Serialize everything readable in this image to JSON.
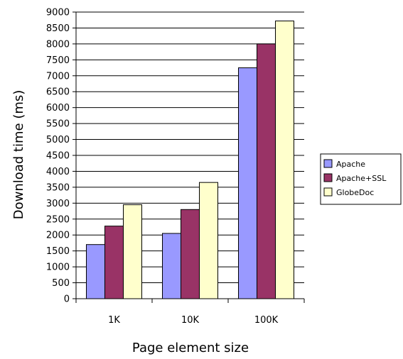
{
  "chart_data": {
    "type": "bar",
    "categories": [
      "1K",
      "10K",
      "100K"
    ],
    "series": [
      {
        "name": "Apache",
        "values": [
          1700,
          2050,
          7250
        ],
        "color": "#9999ff"
      },
      {
        "name": "Apache+SSL",
        "values": [
          2280,
          2800,
          8000
        ],
        "color": "#993366"
      },
      {
        "name": "GlobeDoc",
        "values": [
          2950,
          3650,
          8720
        ],
        "color": "#ffffcc"
      }
    ],
    "xlabel": "Page element size",
    "ylabel": "Download time (ms)",
    "ylim": [
      0,
      9000
    ],
    "ytick_step": 500,
    "grid": true,
    "legend_position": "right"
  }
}
